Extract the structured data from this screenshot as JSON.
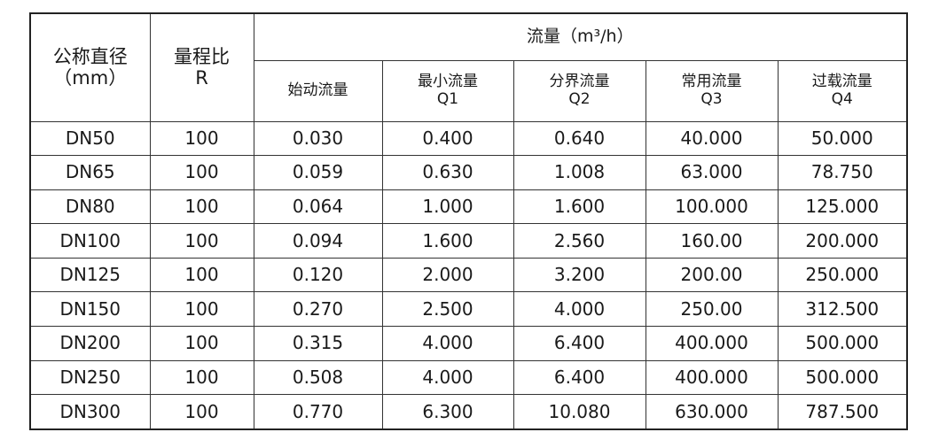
{
  "header": {
    "left": [
      {
        "lines": [
          "公称直径",
          "（mm）"
        ]
      },
      {
        "lines": [
          "量程比",
          "R"
        ]
      }
    ],
    "group": "流量（m³/h）",
    "sub": [
      {
        "lines": [
          "始动流量"
        ]
      },
      {
        "lines": [
          "最小流量",
          "Q1"
        ]
      },
      {
        "lines": [
          "分界流量",
          "Q2"
        ]
      },
      {
        "lines": [
          "常用流量",
          "Q3"
        ]
      },
      {
        "lines": [
          "过载流量",
          "Q4"
        ]
      }
    ]
  },
  "rows": [
    [
      "DN50",
      "100",
      "0.030",
      "0.400",
      "0.640",
      "40.000",
      "50.000"
    ],
    [
      "DN65",
      "100",
      "0.059",
      "0.630",
      "1.008",
      "63.000",
      "78.750"
    ],
    [
      "DN80",
      "100",
      "0.064",
      "1.000",
      "1.600",
      "100.000",
      "125.000"
    ],
    [
      "DN100",
      "100",
      "0.094",
      "1.600",
      "2.560",
      "160.00",
      "200.000"
    ],
    [
      "DN125",
      "100",
      "0.120",
      "2.000",
      "3.200",
      "200.00",
      "250.000"
    ],
    [
      "DN150",
      "100",
      "0.270",
      "2.500",
      "4.000",
      "250.00",
      "312.500"
    ],
    [
      "DN200",
      "100",
      "0.315",
      "4.000",
      "6.400",
      "400.000",
      "500.000"
    ],
    [
      "DN250",
      "100",
      "0.508",
      "4.000",
      "6.400",
      "400.000",
      "500.000"
    ],
    [
      "DN300",
      "100",
      "0.770",
      "6.300",
      "10.080",
      "630.000",
      "787.500"
    ]
  ]
}
